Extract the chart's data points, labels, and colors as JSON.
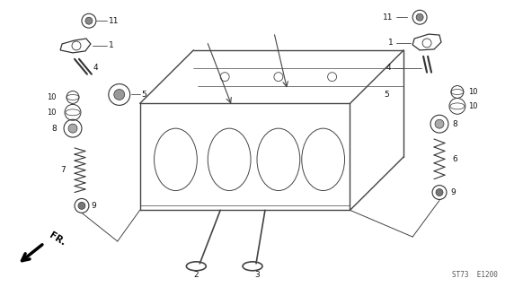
{
  "bg_color": "#ffffff",
  "part_color": "#333333",
  "line_color": "#444444",
  "footer_code": "ST73  E1200",
  "fr_label": "FR."
}
